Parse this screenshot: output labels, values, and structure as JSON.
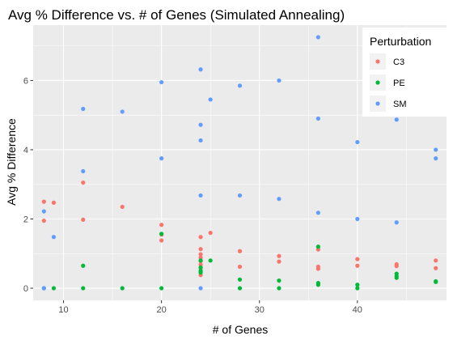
{
  "chart_data": {
    "type": "scatter",
    "title": "Avg % Difference vs. # of Genes (Simulated Annealing)",
    "xlabel": "# of Genes",
    "ylabel": "Avg % Difference",
    "xlim": [
      6.9,
      49.1
    ],
    "ylim": [
      -0.35,
      7.6
    ],
    "x_ticks": [
      10,
      20,
      30,
      40
    ],
    "y_ticks": [
      0,
      2,
      4,
      6
    ],
    "grid": true,
    "legend": {
      "title": "Perturbation",
      "placement": "top-right"
    },
    "series": [
      {
        "name": "C3",
        "color": "#F8766D",
        "points": [
          [
            8,
            2.5
          ],
          [
            8,
            1.95
          ],
          [
            9,
            2.47
          ],
          [
            12,
            3.05
          ],
          [
            12,
            1.98
          ],
          [
            16,
            2.35
          ],
          [
            20,
            1.83
          ],
          [
            20,
            1.55
          ],
          [
            20,
            1.38
          ],
          [
            24,
            1.48
          ],
          [
            24,
            1.13
          ],
          [
            24,
            0.98
          ],
          [
            24,
            0.88
          ],
          [
            24,
            0.78
          ],
          [
            24,
            0.68
          ],
          [
            24,
            0.58
          ],
          [
            24,
            0.48
          ],
          [
            24,
            0.38
          ],
          [
            25,
            1.6
          ],
          [
            28,
            1.07
          ],
          [
            28,
            0.62
          ],
          [
            32,
            0.93
          ],
          [
            32,
            0.77
          ],
          [
            36,
            1.12
          ],
          [
            36,
            0.62
          ],
          [
            36,
            0.56
          ],
          [
            40,
            0.84
          ],
          [
            40,
            0.65
          ],
          [
            44,
            0.69
          ],
          [
            44,
            0.64
          ],
          [
            48,
            0.8
          ],
          [
            48,
            0.58
          ]
        ]
      },
      {
        "name": "PE",
        "color": "#00BA38",
        "points": [
          [
            8,
            0
          ],
          [
            9,
            0
          ],
          [
            12,
            0.65
          ],
          [
            12,
            0
          ],
          [
            16,
            0
          ],
          [
            20,
            1.57
          ],
          [
            20,
            0
          ],
          [
            24,
            0.8
          ],
          [
            24,
            0.6
          ],
          [
            24,
            0.5
          ],
          [
            24,
            0.45
          ],
          [
            25,
            0.8
          ],
          [
            28,
            0.25
          ],
          [
            28,
            0
          ],
          [
            32,
            0.22
          ],
          [
            32,
            0
          ],
          [
            36,
            1.2
          ],
          [
            36,
            0.15
          ],
          [
            36,
            0.1
          ],
          [
            40,
            0.1
          ],
          [
            40,
            0
          ],
          [
            44,
            0.42
          ],
          [
            44,
            0.35
          ],
          [
            44,
            0.3
          ],
          [
            48,
            0.2
          ],
          [
            48,
            0.18
          ]
        ]
      },
      {
        "name": "SM",
        "color": "#619CFF",
        "points": [
          [
            8,
            2.22
          ],
          [
            8,
            0
          ],
          [
            9,
            1.48
          ],
          [
            12,
            5.18
          ],
          [
            12,
            3.38
          ],
          [
            16,
            5.1
          ],
          [
            20,
            5.95
          ],
          [
            20,
            3.75
          ],
          [
            24,
            6.32
          ],
          [
            24,
            4.72
          ],
          [
            24,
            4.27
          ],
          [
            24,
            2.68
          ],
          [
            24,
            0
          ],
          [
            25,
            5.45
          ],
          [
            28,
            5.85
          ],
          [
            28,
            2.68
          ],
          [
            32,
            6.0
          ],
          [
            32,
            2.58
          ],
          [
            36,
            7.25
          ],
          [
            36,
            4.9
          ],
          [
            36,
            2.18
          ],
          [
            40,
            4.22
          ],
          [
            40,
            2.0
          ],
          [
            44,
            4.87
          ],
          [
            44,
            1.9
          ],
          [
            48,
            4.0
          ],
          [
            48,
            3.75
          ]
        ]
      }
    ]
  }
}
